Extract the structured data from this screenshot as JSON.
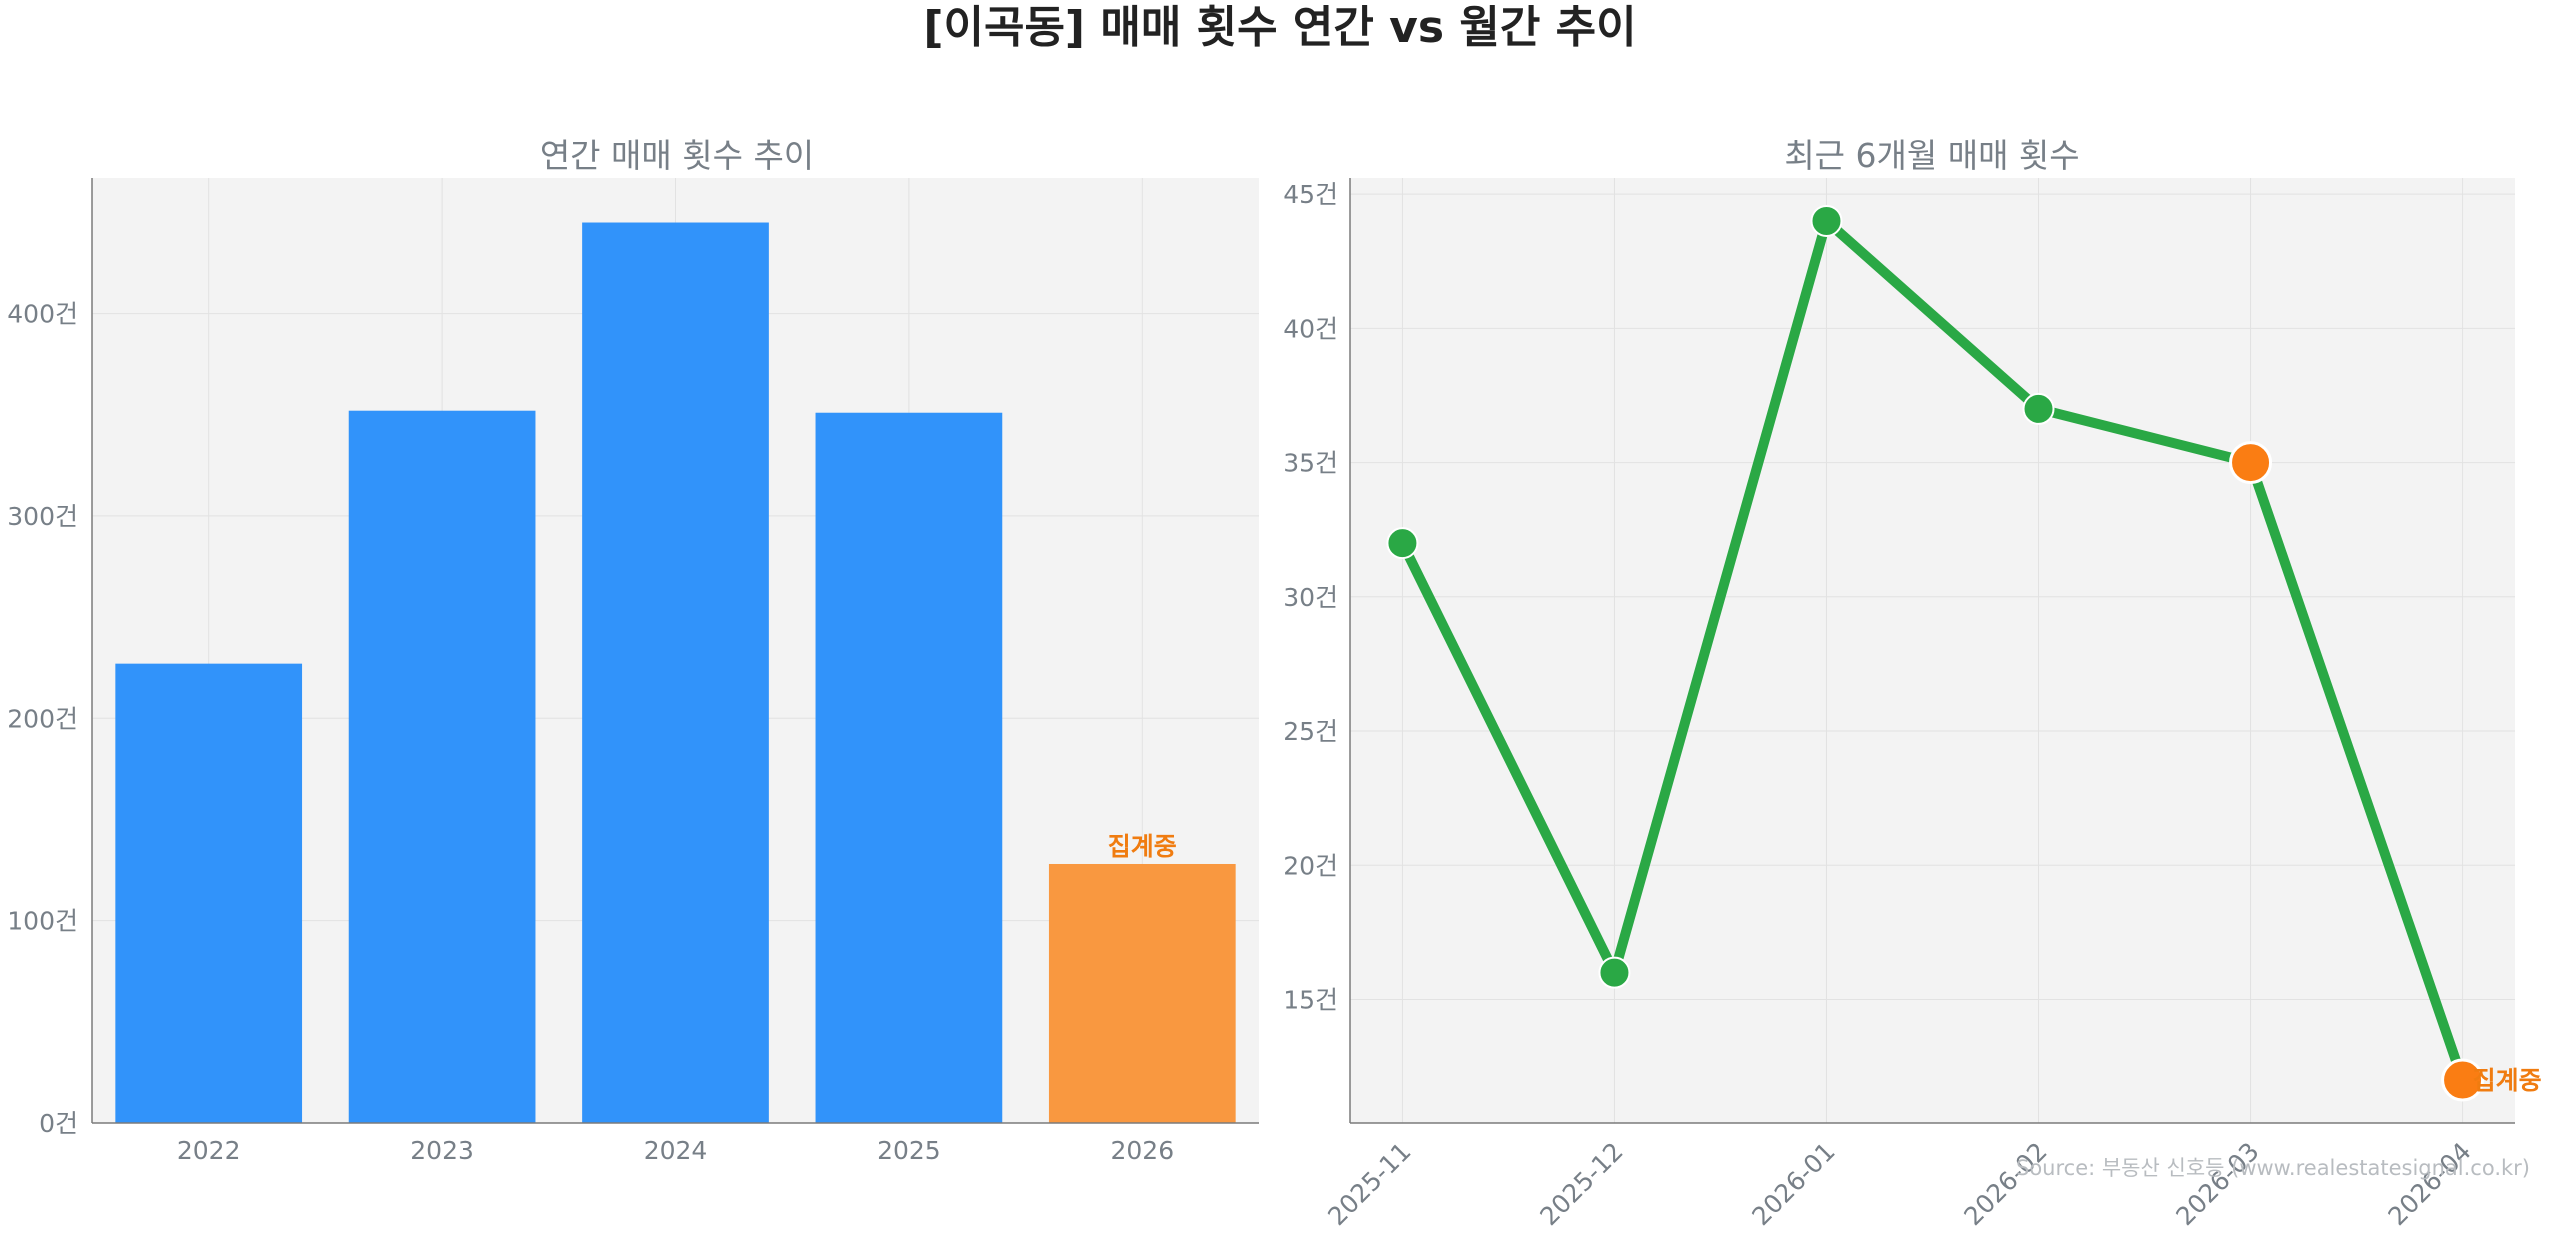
{
  "figure": {
    "title": "[이곡동] 매매 횟수 연간 vs 월간 추이",
    "source": "Source: 부동산 신호등 (www.realestatesignal.co.kr)"
  },
  "colors": {
    "bar_normal": "#3193fa",
    "bar_partial": "#f99840",
    "line": "#2aa845",
    "marker_highlight": "#fa7d13",
    "annotation": "#f07c10",
    "plot_bg": "#f3f3f3",
    "grid": "#e2e2e2",
    "axis": "#7b7b7b"
  },
  "chart_data": [
    {
      "type": "bar",
      "title": "연간 매매 횟수 추이",
      "categories": [
        "2022",
        "2023",
        "2024",
        "2025",
        "2026"
      ],
      "values": [
        227,
        352,
        445,
        351,
        128
      ],
      "partial_index": 4,
      "partial_label": "집계중",
      "ylim": [
        0,
        467
      ],
      "yticks": [
        0,
        100,
        200,
        300,
        400
      ],
      "tick_suffix": "건",
      "grid": true,
      "xlabel": "",
      "ylabel": ""
    },
    {
      "type": "line",
      "title": "최근 6개월 매매 횟수",
      "x": [
        "2025-11",
        "2025-12",
        "2026-01",
        "2026-02",
        "2026-03",
        "2026-04"
      ],
      "values": [
        32,
        16,
        44,
        37,
        35,
        12
      ],
      "highlight_indices": [
        4,
        5
      ],
      "partial_index": 5,
      "partial_label": "집계중",
      "ylim": [
        10.4,
        45.6
      ],
      "yticks": [
        15,
        20,
        25,
        30,
        35,
        40,
        45
      ],
      "tick_suffix": "건",
      "grid": true,
      "xlabel": "",
      "ylabel": ""
    }
  ]
}
